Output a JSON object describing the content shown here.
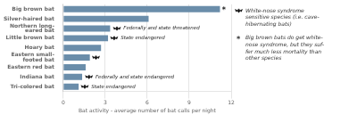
{
  "chart_data": {
    "type": "bar",
    "orientation": "horizontal",
    "categories": [
      "Tri-colored bat",
      "Indiana bat",
      "Eastern red bat",
      "Eastern small-\nfooted bat",
      "Hoary bat",
      "Little brown bat",
      "Northern long-\neared bat",
      "Silver-haired bat",
      "Big brown bat"
    ],
    "values": [
      1.1,
      1.35,
      1.6,
      1.9,
      2.7,
      3.2,
      3.35,
      6.1,
      11.2
    ],
    "color": "#6a8daa",
    "xlabel": "Bat activity - average number of bat calls per night",
    "xlim": [
      0,
      12
    ],
    "xticks": [
      0,
      3,
      6,
      9,
      12
    ],
    "grid": true,
    "annotations": [
      {
        "category": "Northern long-\neared bat",
        "x": 3.55,
        "marker": "bat",
        "label": " Federally and state threatened"
      },
      {
        "category": "Little brown bat",
        "x": 3.35,
        "marker": "bat",
        "label": " State endangered"
      },
      {
        "category": "Eastern small-\nfooted bat",
        "x": 2.05,
        "marker": "bat"
      },
      {
        "category": "Indiana bat",
        "x": 1.55,
        "marker": "bat",
        "label": " Federally and state endangered"
      },
      {
        "category": "Tri-colored bat",
        "x": 1.25,
        "marker": "bat",
        "label": " State endangered"
      },
      {
        "category": "Big brown bat",
        "x": 11.35,
        "label": "*"
      }
    ],
    "notes": [
      {
        "marker": "bat",
        "lines": [
          "White-nose syndrome",
          "sensitive species (i.e. cave-",
          "hibernating bats)"
        ]
      },
      {
        "marker": "*",
        "lines": [
          "Big brown bats do get white-",
          "nose syndrome, but they suf-",
          "fer much less mortality than",
          "other species"
        ]
      }
    ]
  }
}
